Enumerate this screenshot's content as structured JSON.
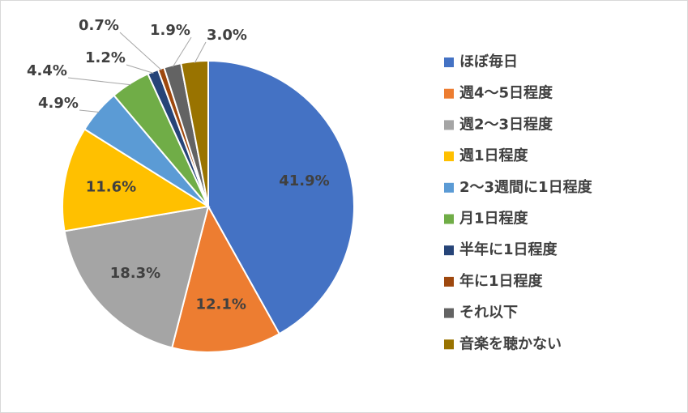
{
  "chart_data": {
    "type": "pie",
    "categories": [
      "ほぼ毎日",
      "週4〜5日程度",
      "週2〜3日程度",
      "週1日程度",
      "2〜3週間に1日程度",
      "月1日程度",
      "半年に1日程度",
      "年に1日程度",
      "それ以下",
      "音楽を聴かない"
    ],
    "values": [
      41.9,
      12.1,
      18.3,
      11.6,
      4.9,
      4.4,
      1.2,
      0.7,
      1.9,
      3.0
    ],
    "value_labels": [
      "41.9%",
      "12.1%",
      "18.3%",
      "11.6%",
      "4.9%",
      "4.4%",
      "1.2%",
      "0.7%",
      "1.9%",
      "3.0%"
    ],
    "colors": [
      "#4472c4",
      "#ed7d31",
      "#a5a5a5",
      "#ffc000",
      "#5b9bd5",
      "#70ad47",
      "#264478",
      "#9e480e",
      "#636363",
      "#997300"
    ],
    "legend": "right"
  }
}
